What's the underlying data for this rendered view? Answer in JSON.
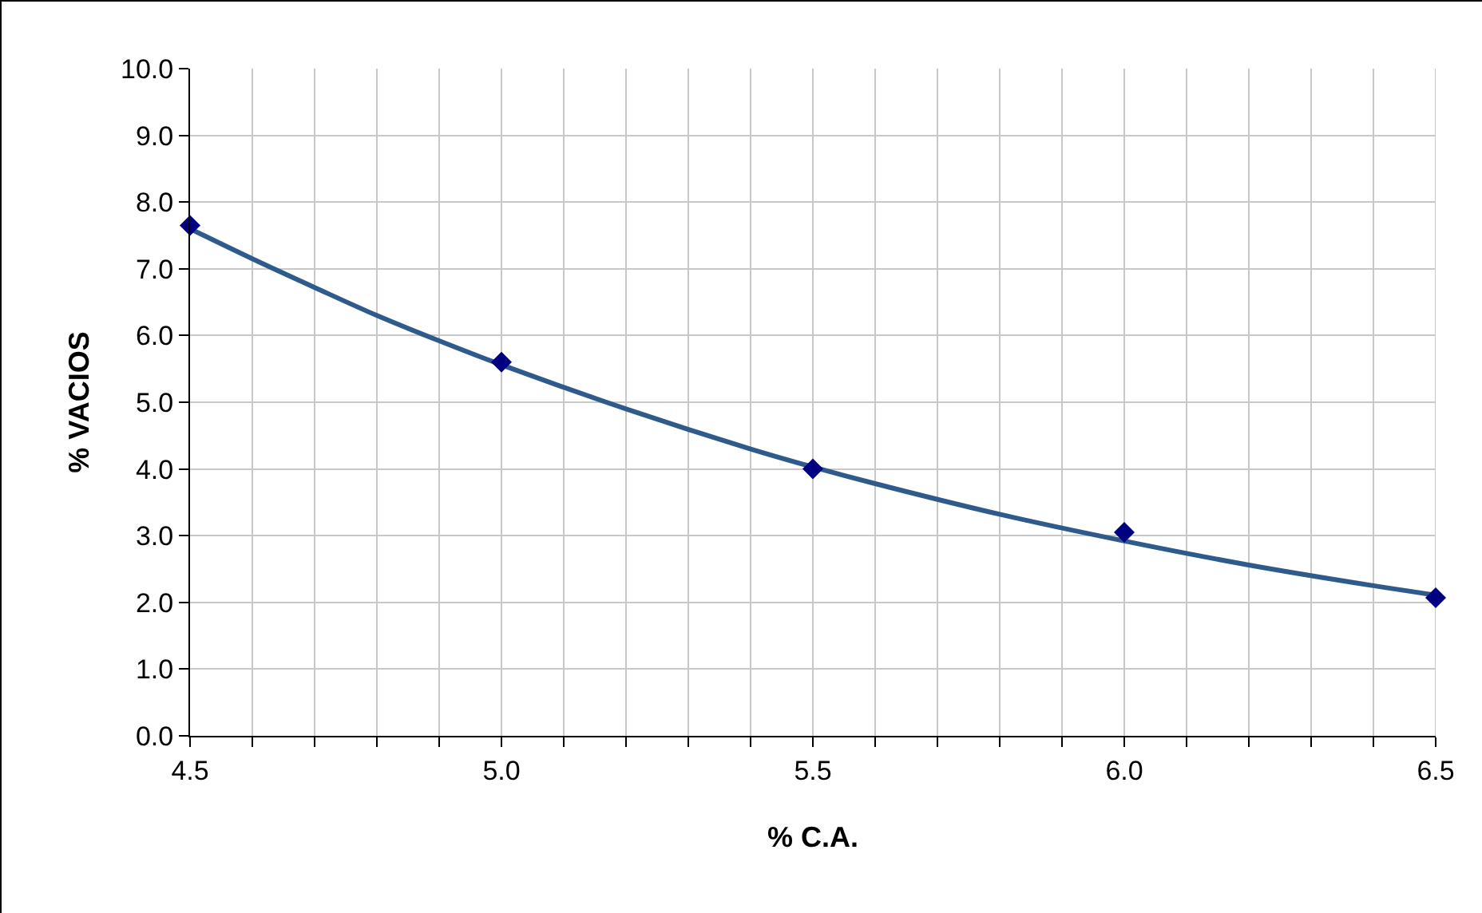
{
  "chart_data": {
    "type": "scatter",
    "xlabel": "% C.A.",
    "ylabel": "% VACIOS",
    "x": [
      4.5,
      5.0,
      5.5,
      6.0,
      6.5
    ],
    "series": [
      {
        "color": "#000080",
        "marker": "diamond",
        "values": [
          7.65,
          5.6,
          4.0,
          3.05,
          2.07
        ]
      },
      {
        "type": "line",
        "color": "#2f5a8c",
        "marker": "none",
        "x": [
          4.5,
          4.6,
          4.7,
          4.8,
          4.9,
          5.0,
          5.2,
          5.4,
          5.5,
          5.6,
          5.8,
          6.0,
          6.2,
          6.4,
          6.5
        ],
        "values": [
          7.6,
          7.15,
          6.72,
          6.3,
          5.92,
          5.56,
          4.9,
          4.3,
          4.03,
          3.78,
          3.32,
          2.92,
          2.56,
          2.25,
          2.11
        ]
      }
    ],
    "xlim": [
      4.5,
      6.5
    ],
    "xticks": [
      4.5,
      {
        "value": 4.6,
        "label": null
      },
      {
        "value": 4.7,
        "label": null
      },
      {
        "value": 4.8,
        "label": null
      },
      {
        "value": 4.9,
        "label": null
      },
      {
        "value": 5.0,
        "label": "5.0"
      },
      {
        "value": 5.1,
        "label": null
      },
      {
        "value": 5.2,
        "label": null
      },
      {
        "value": 5.3,
        "label": null
      },
      {
        "value": 5.4,
        "label": null
      },
      5.5,
      {
        "value": 5.6,
        "label": null
      },
      {
        "value": 5.7,
        "label": null
      },
      {
        "value": 5.8,
        "label": null
      },
      {
        "value": 5.9,
        "label": null
      },
      {
        "value": 6.0,
        "label": "6.0"
      },
      {
        "value": 6.1,
        "label": null
      },
      {
        "value": 6.2,
        "label": null
      },
      {
        "value": 6.3,
        "label": null
      },
      {
        "value": 6.4,
        "label": null
      },
      6.5
    ],
    "ylim": [
      0,
      10
    ],
    "yticks": [
      {
        "value": 0,
        "label": "0.0"
      },
      {
        "value": 1,
        "label": "1.0"
      },
      {
        "value": 2,
        "label": "2.0"
      },
      {
        "value": 3,
        "label": "3.0"
      },
      {
        "value": 4,
        "label": "4.0"
      },
      {
        "value": 5,
        "label": "5.0"
      },
      {
        "value": 6,
        "label": "6.0"
      },
      {
        "value": 7,
        "label": "7.0"
      },
      {
        "value": 8,
        "label": "8.0"
      },
      {
        "value": 9,
        "label": "9.0"
      },
      {
        "value": 10,
        "label": "10.0"
      }
    ],
    "grid": true
  }
}
